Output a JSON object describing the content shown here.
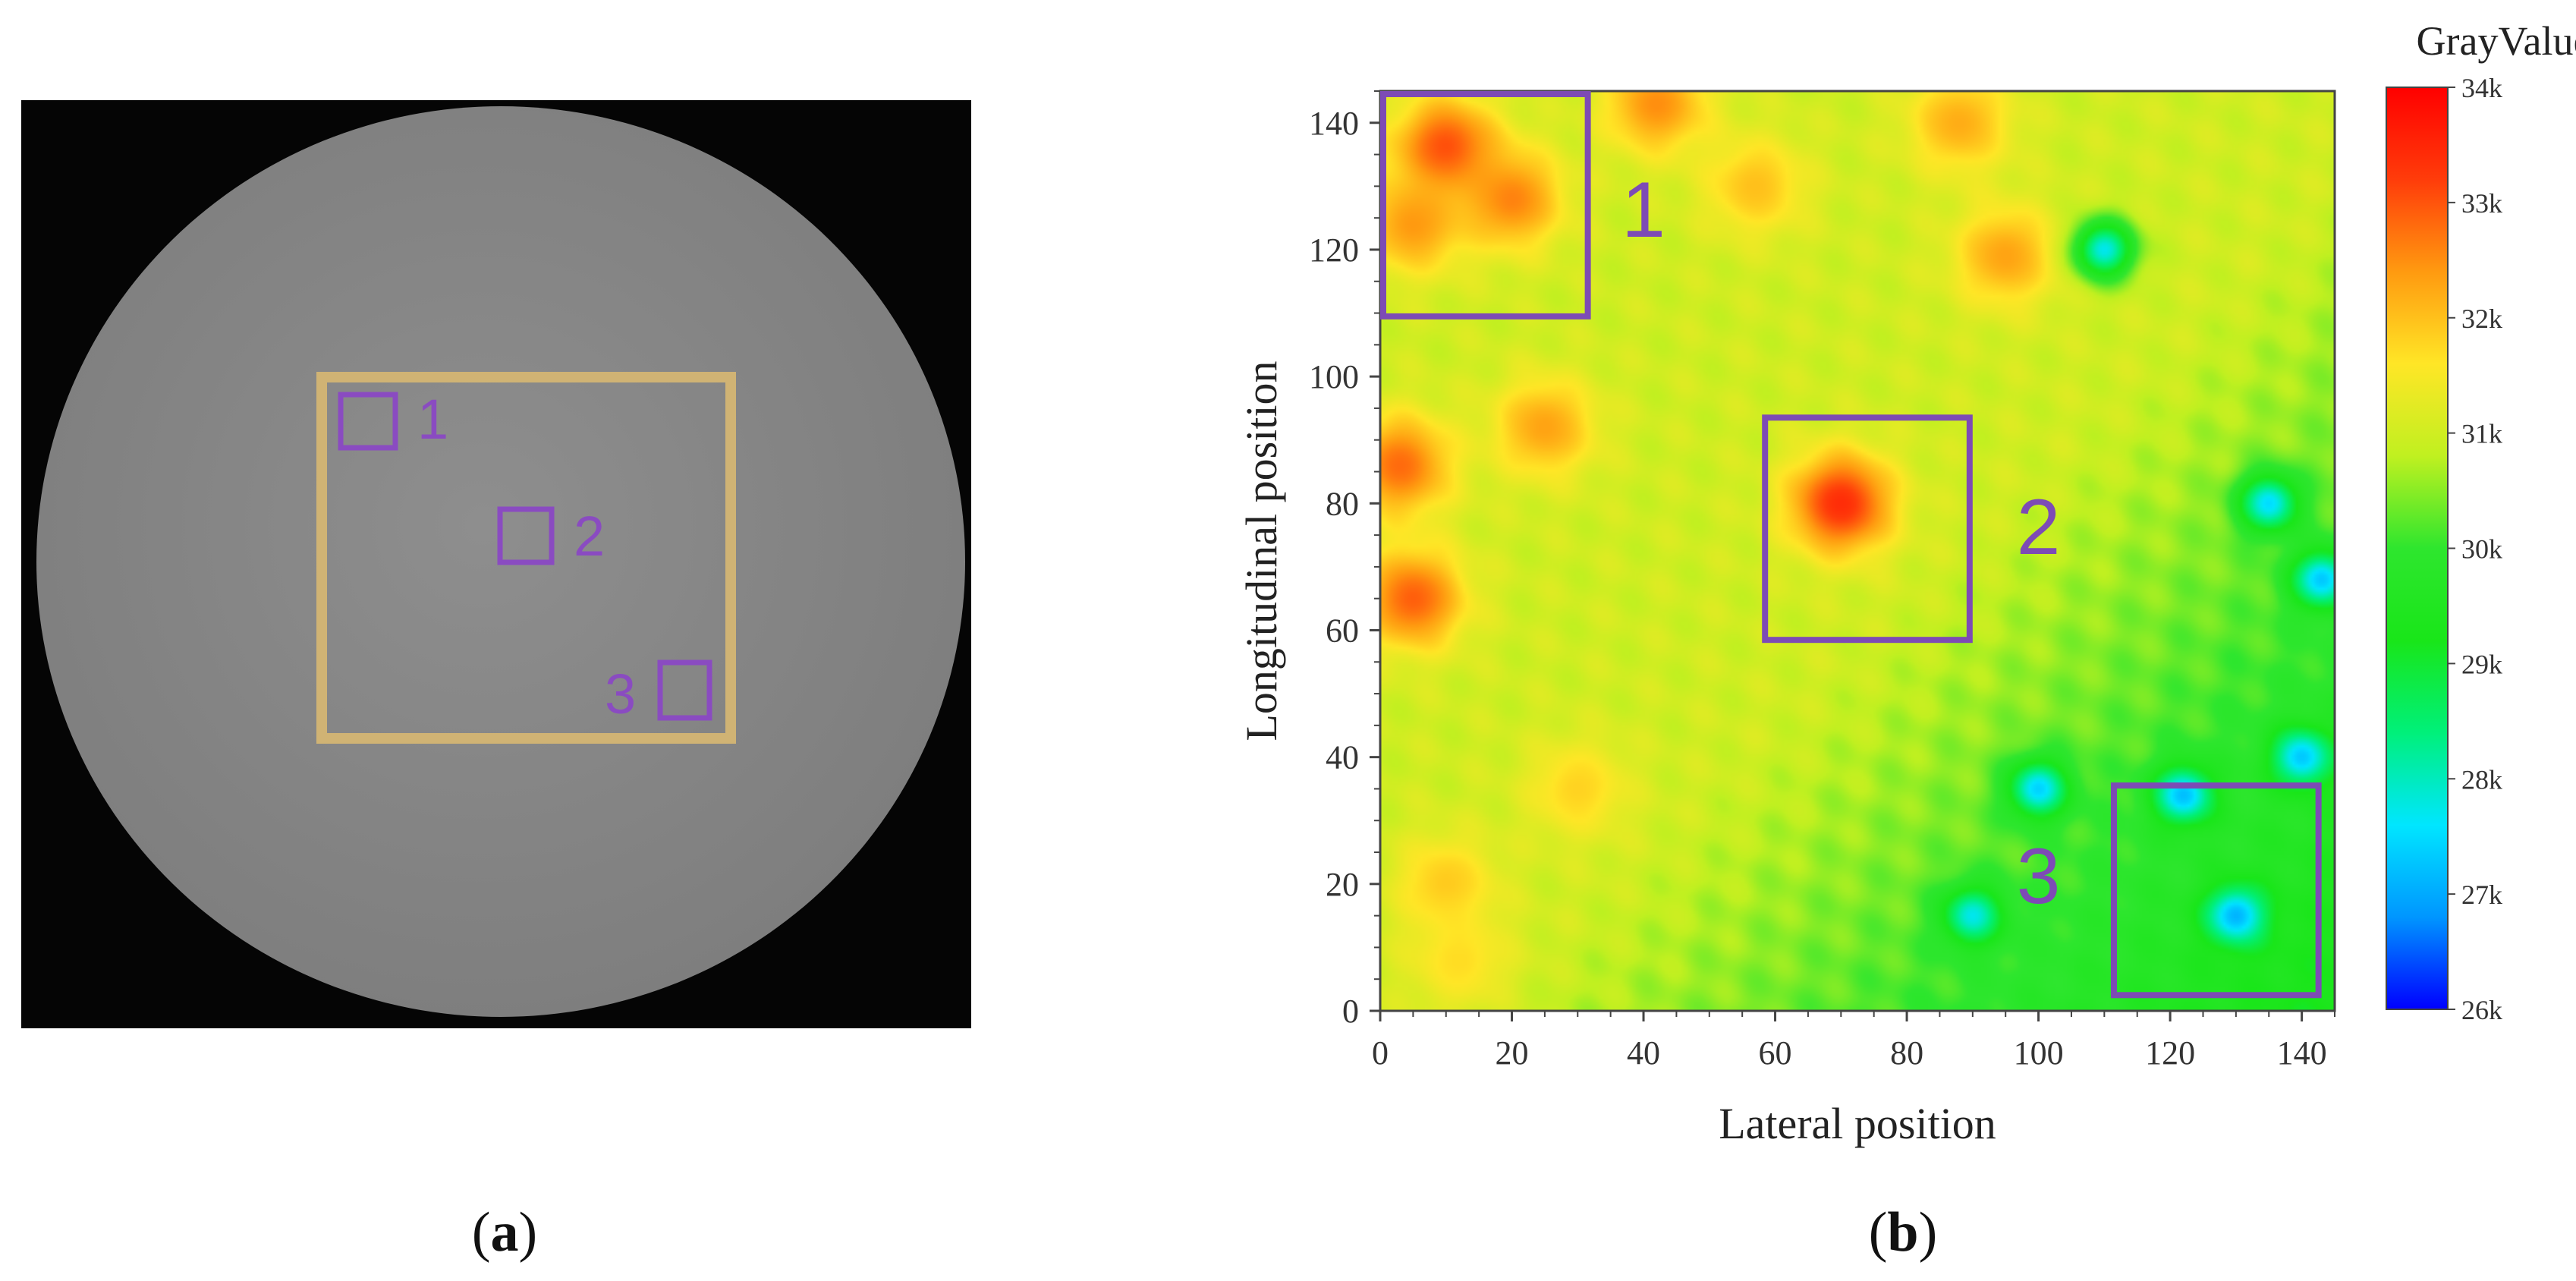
{
  "panel_a": {
    "caption_letter": "a",
    "roi_labels": [
      "1",
      "2",
      "3"
    ],
    "colors": {
      "background": "#050505",
      "disk": "#8c8c8c",
      "scan_region": "#d8b872",
      "roi": "#8a4bc1"
    }
  },
  "panel_b": {
    "caption_letter": "b",
    "region_labels": [
      "1",
      "2",
      "3"
    ],
    "colorbar": {
      "title": "GrayValue",
      "ticks": [
        "34k",
        "33k",
        "32k",
        "31k",
        "30k",
        "29k",
        "28k",
        "27k",
        "26k"
      ],
      "range": [
        26000,
        34000
      ],
      "colors": [
        "#0000ff",
        "#0096ff",
        "#00e6ff",
        "#00f07a",
        "#19e619",
        "#2ee62e",
        "#c0f020",
        "#ffe626",
        "#ff9a10",
        "#ff3c0a",
        "#ff0000"
      ]
    },
    "colors": {
      "frame": "#7d4bb5"
    }
  },
  "chart_data": {
    "type": "heatmap",
    "title": "",
    "xlabel": "Lateral position",
    "ylabel": "Longitudinal position",
    "xlim": [
      0,
      145
    ],
    "ylim": [
      0,
      145
    ],
    "xticks": [
      0,
      20,
      40,
      60,
      80,
      100,
      120,
      140
    ],
    "yticks": [
      0,
      20,
      40,
      60,
      80,
      100,
      120,
      140
    ],
    "value_label": "GrayValue",
    "value_range": [
      26000,
      34000
    ],
    "base_field": "value ≈ 31200 − 14 × (lateral − longitudinal) clipped to the 28000–31000 band outside hot spots",
    "hot_spots": [
      {
        "x": 10,
        "y": 136,
        "value": 33100
      },
      {
        "x": 20,
        "y": 128,
        "value": 32600
      },
      {
        "x": 5,
        "y": 124,
        "value": 32400
      },
      {
        "x": 42,
        "y": 143,
        "value": 32500
      },
      {
        "x": 57,
        "y": 130,
        "value": 32000
      },
      {
        "x": 88,
        "y": 140,
        "value": 32200
      },
      {
        "x": 3,
        "y": 86,
        "value": 32800
      },
      {
        "x": 5,
        "y": 65,
        "value": 32900
      },
      {
        "x": 25,
        "y": 92,
        "value": 32300
      },
      {
        "x": 70,
        "y": 80,
        "value": 33400
      },
      {
        "x": 95,
        "y": 119,
        "value": 32300
      },
      {
        "x": 30,
        "y": 35,
        "value": 31800
      },
      {
        "x": 10,
        "y": 20,
        "value": 31900
      },
      {
        "x": 12,
        "y": 8,
        "value": 31700
      }
    ],
    "cold_spots": [
      {
        "x": 110,
        "y": 120,
        "value": 27700
      },
      {
        "x": 122,
        "y": 34,
        "value": 27200
      },
      {
        "x": 130,
        "y": 15,
        "value": 27100
      },
      {
        "x": 140,
        "y": 40,
        "value": 27300
      },
      {
        "x": 100,
        "y": 35,
        "value": 27400
      },
      {
        "x": 135,
        "y": 80,
        "value": 27500
      },
      {
        "x": 90,
        "y": 15,
        "value": 27700
      },
      {
        "x": 143,
        "y": 68,
        "value": 27300
      }
    ],
    "regions": [
      {
        "label": "1",
        "x": [
          0,
          32
        ],
        "y": [
          109,
          145
        ]
      },
      {
        "label": "2",
        "x": [
          58,
          90
        ],
        "y": [
          58,
          94
        ]
      },
      {
        "label": "3",
        "x": [
          111,
          143
        ],
        "y": [
          2,
          36
        ]
      }
    ]
  }
}
